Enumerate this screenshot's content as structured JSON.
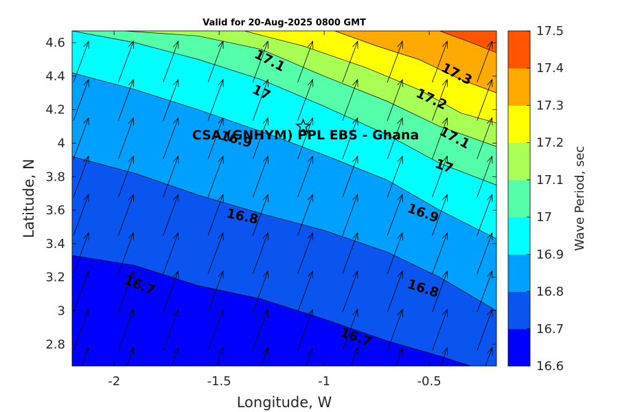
{
  "title": "Valid for 20-Aug-2025 0800 GMT",
  "xlabel": "Longitude, W",
  "ylabel": "Latitude, N",
  "colorbar_label": "Wave Period, sec",
  "site_label": "CSA (GNHYM) PPL EBS  - Ghana",
  "site_marker": "star-icon",
  "map": {
    "xlim": [
      -2.2,
      -0.18
    ],
    "ylim": [
      2.67,
      4.67
    ],
    "x_ticks": [
      -2,
      -1.5,
      -1,
      -0.5
    ],
    "x_tick_labels": [
      "-2",
      "-1.5",
      "-1",
      "-0.5"
    ],
    "y_ticks": [
      2.8,
      3.0,
      3.2,
      3.4,
      3.6,
      3.8,
      4.0,
      4.2,
      4.4,
      4.6
    ],
    "y_tick_labels": [
      "2.8",
      "3",
      "3.2",
      "3.4",
      "3.6",
      "3.8",
      "4",
      "4.2",
      "4.4",
      "4.6"
    ],
    "site": {
      "lon": -1.1,
      "lat": 4.1
    },
    "colorbar": {
      "levels": [
        16.6,
        16.7,
        16.8,
        16.9,
        17.0,
        17.1,
        17.2,
        17.3,
        17.4,
        17.5
      ],
      "tick_labels": [
        "16.6",
        "16.7",
        "16.8",
        "16.9",
        "17",
        "17.1",
        "17.2",
        "17.3",
        "17.4",
        "17.5"
      ],
      "colors": [
        "#0000ff",
        "#0a55f0",
        "#00a0ff",
        "#00ffff",
        "#55ffaa",
        "#aaff55",
        "#ffff00",
        "#ffaa00",
        "#ff5500"
      ]
    },
    "contours": [
      {
        "level": 16.7,
        "pts": [
          [
            -2.2,
            3.33
          ],
          [
            -1.9,
            3.27
          ],
          [
            -1.6,
            3.15
          ],
          [
            -1.3,
            3.07
          ],
          [
            -1.0,
            2.95
          ],
          [
            -0.7,
            2.82
          ],
          [
            -0.45,
            2.73
          ],
          [
            -0.18,
            2.62
          ]
        ]
      },
      {
        "level": 16.8,
        "pts": [
          [
            -2.2,
            3.92
          ],
          [
            -1.9,
            3.82
          ],
          [
            -1.6,
            3.69
          ],
          [
            -1.3,
            3.58
          ],
          [
            -1.0,
            3.48
          ],
          [
            -0.7,
            3.35
          ],
          [
            -0.45,
            3.2
          ],
          [
            -0.18,
            3.0
          ]
        ]
      },
      {
        "level": 16.9,
        "pts": [
          [
            -2.2,
            4.42
          ],
          [
            -1.9,
            4.32
          ],
          [
            -1.6,
            4.2
          ],
          [
            -1.3,
            4.07
          ],
          [
            -1.0,
            3.93
          ],
          [
            -0.7,
            3.78
          ],
          [
            -0.45,
            3.6
          ],
          [
            -0.18,
            3.43
          ]
        ]
      },
      {
        "level": 17.0,
        "pts": [
          [
            -2.2,
            4.67
          ],
          [
            -1.9,
            4.6
          ],
          [
            -1.6,
            4.5
          ],
          [
            -1.3,
            4.38
          ],
          [
            -1.0,
            4.22
          ],
          [
            -0.7,
            4.05
          ],
          [
            -0.45,
            3.88
          ],
          [
            -0.18,
            3.75
          ]
        ]
      },
      {
        "level": 17.1,
        "pts": [
          [
            -1.95,
            4.67
          ],
          [
            -1.6,
            4.64
          ],
          [
            -1.3,
            4.56
          ],
          [
            -1.0,
            4.4
          ],
          [
            -0.7,
            4.25
          ],
          [
            -0.45,
            4.1
          ],
          [
            -0.18,
            3.98
          ]
        ]
      },
      {
        "level": 17.2,
        "pts": [
          [
            -1.38,
            4.67
          ],
          [
            -1.1,
            4.58
          ],
          [
            -0.8,
            4.45
          ],
          [
            -0.55,
            4.32
          ],
          [
            -0.35,
            4.18
          ],
          [
            -0.18,
            4.12
          ]
        ]
      },
      {
        "level": 17.3,
        "pts": [
          [
            -0.95,
            4.67
          ],
          [
            -0.75,
            4.58
          ],
          [
            -0.55,
            4.5
          ],
          [
            -0.35,
            4.38
          ],
          [
            -0.18,
            4.3
          ]
        ]
      },
      {
        "level": 17.4,
        "pts": [
          [
            -0.45,
            4.67
          ],
          [
            -0.3,
            4.6
          ],
          [
            -0.18,
            4.54
          ]
        ]
      }
    ],
    "contour_labels": [
      {
        "text": "16.7",
        "lon": -1.88,
        "lat": 3.15,
        "angle": 22
      },
      {
        "text": "16.7",
        "lon": -0.85,
        "lat": 2.84,
        "angle": 20
      },
      {
        "text": "16.8",
        "lon": -1.39,
        "lat": 3.56,
        "angle": 12
      },
      {
        "text": "16.8",
        "lon": -0.53,
        "lat": 3.13,
        "angle": 18
      },
      {
        "text": "16.9",
        "lon": -1.42,
        "lat": 4.02,
        "angle": 15
      },
      {
        "text": "16.9",
        "lon": -0.53,
        "lat": 3.58,
        "angle": 20
      },
      {
        "text": "17",
        "lon": -1.3,
        "lat": 4.3,
        "angle": 25
      },
      {
        "text": "17",
        "lon": -0.43,
        "lat": 3.86,
        "angle": 20
      },
      {
        "text": "17.1",
        "lon": -1.26,
        "lat": 4.49,
        "angle": 27
      },
      {
        "text": "17.1",
        "lon": -0.38,
        "lat": 4.03,
        "angle": 28
      },
      {
        "text": "17.2",
        "lon": -0.49,
        "lat": 4.26,
        "angle": 25
      },
      {
        "text": "17.3",
        "lon": -0.37,
        "lat": 4.41,
        "angle": 27
      }
    ]
  }
}
